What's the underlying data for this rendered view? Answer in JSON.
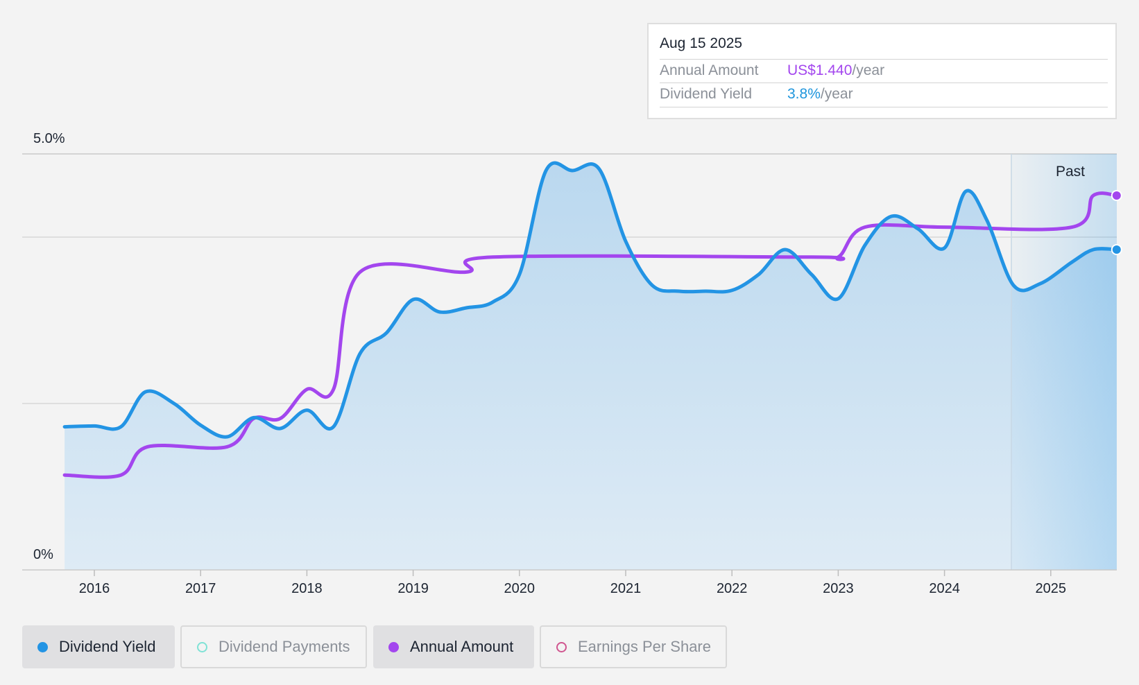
{
  "tooltip": {
    "date": "Aug 15 2025",
    "rows": [
      {
        "label": "Annual Amount",
        "value": "US$1.440",
        "unit": "/year",
        "color": "#a346ee"
      },
      {
        "label": "Dividend Yield",
        "value": "3.8%",
        "unit": "/year",
        "color": "#1e95dc"
      }
    ]
  },
  "legend": [
    {
      "label": "Dividend Yield",
      "color": "#2394e4",
      "active": true
    },
    {
      "label": "Dividend Payments",
      "color": "#7fe2d5",
      "active": false
    },
    {
      "label": "Annual Amount",
      "color": "#a346ee",
      "active": true
    },
    {
      "label": "Earnings Per Share",
      "color": "#d0558f",
      "active": false
    }
  ],
  "chart_data": {
    "type": "line",
    "x_ticks": [
      "2016",
      "2017",
      "2018",
      "2019",
      "2020",
      "2021",
      "2022",
      "2023",
      "2024",
      "2025"
    ],
    "y_tick_labels": [
      "0%",
      "5.0%"
    ],
    "ylim": [
      0,
      5.0
    ],
    "past_label": "Past",
    "series": [
      {
        "name": "Dividend Yield",
        "color": "#2394e4",
        "points": [
          [
            2015.72,
            1.72
          ],
          [
            2016.0,
            1.73
          ],
          [
            2016.25,
            1.72
          ],
          [
            2016.48,
            2.14
          ],
          [
            2016.75,
            2.0
          ],
          [
            2017.0,
            1.74
          ],
          [
            2017.25,
            1.6
          ],
          [
            2017.5,
            1.83
          ],
          [
            2017.75,
            1.7
          ],
          [
            2018.0,
            1.92
          ],
          [
            2018.25,
            1.72
          ],
          [
            2018.5,
            2.6
          ],
          [
            2018.75,
            2.85
          ],
          [
            2019.0,
            3.25
          ],
          [
            2019.25,
            3.1
          ],
          [
            2019.5,
            3.15
          ],
          [
            2019.75,
            3.22
          ],
          [
            2020.0,
            3.55
          ],
          [
            2020.25,
            4.8
          ],
          [
            2020.5,
            4.8
          ],
          [
            2020.75,
            4.82
          ],
          [
            2021.0,
            3.95
          ],
          [
            2021.25,
            3.42
          ],
          [
            2021.5,
            3.35
          ],
          [
            2021.75,
            3.35
          ],
          [
            2022.0,
            3.36
          ],
          [
            2022.25,
            3.55
          ],
          [
            2022.5,
            3.85
          ],
          [
            2022.75,
            3.55
          ],
          [
            2023.0,
            3.26
          ],
          [
            2023.25,
            3.9
          ],
          [
            2023.5,
            4.25
          ],
          [
            2023.75,
            4.1
          ],
          [
            2024.0,
            3.87
          ],
          [
            2024.2,
            4.55
          ],
          [
            2024.4,
            4.2
          ],
          [
            2024.65,
            3.42
          ],
          [
            2024.9,
            3.44
          ],
          [
            2025.2,
            3.7
          ],
          [
            2025.4,
            3.85
          ],
          [
            2025.62,
            3.85
          ]
        ]
      },
      {
        "name": "Annual Amount",
        "color": "#a346ee",
        "points": [
          [
            2015.72,
            1.14
          ],
          [
            2016.25,
            1.14
          ],
          [
            2016.5,
            1.48
          ],
          [
            2017.25,
            1.48
          ],
          [
            2017.5,
            1.82
          ],
          [
            2017.75,
            1.82
          ],
          [
            2018.0,
            2.17
          ],
          [
            2018.25,
            2.17
          ],
          [
            2018.5,
            3.58
          ],
          [
            2019.5,
            3.58
          ],
          [
            2019.75,
            3.76
          ],
          [
            2022.75,
            3.76
          ],
          [
            2023.0,
            3.76
          ],
          [
            2023.25,
            4.12
          ],
          [
            2024.0,
            4.12
          ],
          [
            2025.2,
            4.12
          ],
          [
            2025.4,
            4.5
          ],
          [
            2025.62,
            4.5
          ]
        ]
      }
    ]
  }
}
